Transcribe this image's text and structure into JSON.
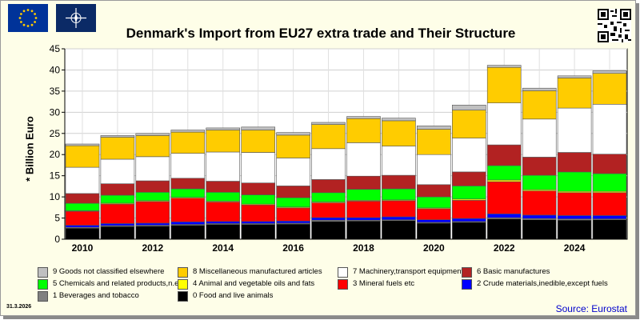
{
  "title": "Denmark's Import from EU27 extra trade and Their Structure",
  "date_stamp": "31.3.2026",
  "source": "Source: Eurostat",
  "icons": {
    "eu_flag": "eu-flag-icon",
    "nato_flag": "nato-flag-icon",
    "qr_code": "qr-code-icon"
  },
  "chart_data": {
    "type": "bar",
    "stacked": true,
    "ylabel": "* Billion Euro",
    "ylim": [
      0,
      45
    ],
    "yticks": [
      0,
      5,
      10,
      15,
      20,
      25,
      30,
      35,
      40,
      45
    ],
    "x_tick_labels": [
      "2010",
      "2012",
      "2014",
      "2016",
      "2018",
      "2020",
      "2022",
      "2024"
    ],
    "categories": [
      "2010",
      "2011",
      "2012",
      "2013",
      "2014",
      "2015",
      "2016",
      "2017",
      "2018",
      "2019",
      "2020",
      "2021",
      "2022",
      "2023",
      "2024",
      "2025"
    ],
    "grid": true,
    "legend_position": "bottom",
    "series": [
      {
        "name": "0 Food and live animals",
        "color": "#000000",
        "values": [
          2.6,
          3.0,
          3.1,
          3.3,
          3.5,
          3.5,
          3.6,
          4.2,
          4.3,
          4.4,
          3.8,
          4.0,
          4.8,
          4.6,
          4.5,
          4.6
        ]
      },
      {
        "name": "1 Beverages and tobacco",
        "color": "#808080",
        "values": [
          0.2,
          0.2,
          0.2,
          0.2,
          0.2,
          0.2,
          0.2,
          0.3,
          0.2,
          0.2,
          0.2,
          0.2,
          0.3,
          0.3,
          0.3,
          0.2
        ]
      },
      {
        "name": "2 Crude materials,inedible,except fuels",
        "color": "#0000ff",
        "values": [
          0.5,
          0.5,
          0.5,
          0.6,
          0.5,
          0.5,
          0.5,
          0.6,
          0.6,
          0.7,
          0.6,
          0.7,
          0.9,
          0.8,
          0.8,
          0.8
        ]
      },
      {
        "name": "3 Mineral fuels etc",
        "color": "#ff0000",
        "values": [
          3.3,
          4.6,
          5.1,
          5.6,
          4.6,
          3.9,
          3.1,
          3.5,
          3.9,
          3.8,
          2.6,
          4.3,
          7.6,
          5.7,
          5.4,
          5.4
        ]
      },
      {
        "name": "4 Animal and vegetable oils and fats",
        "color": "#ffff00",
        "values": [
          0.1,
          0.2,
          0.2,
          0.2,
          0.2,
          0.2,
          0.2,
          0.2,
          0.2,
          0.2,
          0.2,
          0.3,
          0.4,
          0.3,
          0.3,
          0.3
        ]
      },
      {
        "name": "5 Chemicals and related products,n.e.s.",
        "color": "#00ff00",
        "values": [
          1.8,
          1.9,
          2.0,
          2.0,
          2.1,
          2.2,
          2.2,
          2.2,
          2.6,
          2.6,
          2.6,
          3.1,
          3.4,
          3.4,
          4.6,
          4.2
        ]
      },
      {
        "name": "6 Basic manufactures",
        "color": "#b22222",
        "values": [
          2.3,
          2.7,
          2.7,
          2.5,
          2.6,
          2.8,
          2.8,
          3.1,
          3.1,
          3.2,
          2.9,
          3.3,
          4.9,
          4.3,
          4.6,
          4.6
        ]
      },
      {
        "name": "7 Machinery,transport equipment",
        "color": "#ffffff",
        "values": [
          6.2,
          5.8,
          5.7,
          5.9,
          6.9,
          7.2,
          6.6,
          7.3,
          7.9,
          6.9,
          7.1,
          8.0,
          9.9,
          9.0,
          10.5,
          11.8
        ]
      },
      {
        "name": "8 Miscellaneous manufactured articles",
        "color": "#ffcc00",
        "values": [
          5.1,
          5.2,
          5.0,
          5.0,
          5.2,
          5.3,
          5.4,
          5.7,
          5.7,
          6.0,
          6.0,
          6.6,
          8.4,
          6.7,
          7.1,
          7.3
        ]
      },
      {
        "name": "9 Goods not classified elsewhere",
        "color": "#c0c0c0",
        "values": [
          0.4,
          0.4,
          0.5,
          0.5,
          0.5,
          0.7,
          0.6,
          0.5,
          0.5,
          0.6,
          0.8,
          1.2,
          0.5,
          0.6,
          0.5,
          0.6
        ]
      }
    ]
  }
}
